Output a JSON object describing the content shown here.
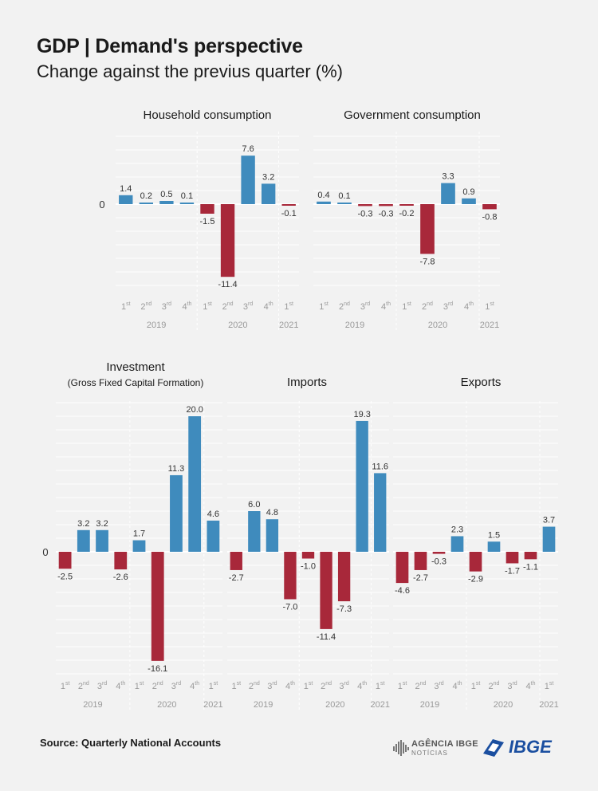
{
  "title": "GDP | Demand's perspective",
  "subtitle": "Change against the previus quarter (%)",
  "source": "Source: Quarterly National Accounts",
  "logos": {
    "agencia_line1": "AGÊNCIA IBGE",
    "agencia_line2": "NOTÍCIAS",
    "ibge": "IBGE"
  },
  "colors": {
    "positive": "#3f8bbd",
    "negative": "#a8283a",
    "background": "#f2f2f2",
    "grid": "#ffffff",
    "ibge_blue": "#1b4fa0"
  },
  "chart_data": [
    {
      "type": "bar",
      "title": "Household consumption",
      "subtitle": "",
      "categories": [
        "1st 2019",
        "2nd 2019",
        "3rd 2019",
        "4th 2019",
        "1st 2020",
        "2nd 2020",
        "3rd 2020",
        "4th 2020",
        "1st 2021"
      ],
      "values": [
        1.4,
        0.2,
        0.5,
        0.1,
        -1.5,
        -11.4,
        7.6,
        3.2,
        -0.1
      ],
      "value_labels": [
        "1.4",
        "0.2",
        "0.5",
        "0.1",
        "-1.5",
        "-11.4",
        "7.6",
        "3.2",
        "-0.1"
      ],
      "quarter_labels": [
        "1st",
        "2nd",
        "3rd",
        "4th",
        "1st",
        "2nd",
        "3rd",
        "4th",
        "1st"
      ],
      "year_labels": [
        "2019",
        "2020",
        "2021"
      ],
      "zero_label": "0",
      "ylim": [
        -12.5,
        10.5
      ],
      "grid": true
    },
    {
      "type": "bar",
      "title": "Government consumption",
      "subtitle": "",
      "categories": [
        "1st 2019",
        "2nd 2019",
        "3rd 2019",
        "4th 2019",
        "1st 2020",
        "2nd 2020",
        "3rd 2020",
        "4th 2020",
        "1st 2021"
      ],
      "values": [
        0.4,
        0.1,
        -0.3,
        -0.3,
        -0.2,
        -7.8,
        3.3,
        0.9,
        -0.8
      ],
      "value_labels": [
        "0.4",
        "0.1",
        "-0.3",
        "-0.3",
        "-0.2",
        "-7.8",
        "3.3",
        "0.9",
        "-0.8"
      ],
      "quarter_labels": [
        "1st",
        "2nd",
        "3rd",
        "4th",
        "1st",
        "2nd",
        "3rd",
        "4th",
        "1st"
      ],
      "year_labels": [
        "2019",
        "2020",
        "2021"
      ],
      "zero_label": "",
      "ylim": [
        -12.5,
        10.5
      ],
      "grid": true
    },
    {
      "type": "bar",
      "title": "Investment",
      "subtitle": "(Gross Fixed Capital Formation)",
      "categories": [
        "1st 2019",
        "2nd 2019",
        "3rd 2019",
        "4th 2019",
        "1st 2020",
        "2nd 2020",
        "3rd 2020",
        "4th 2020",
        "1st 2021"
      ],
      "values": [
        -2.5,
        3.2,
        3.2,
        -2.6,
        1.7,
        -16.1,
        11.3,
        20.0,
        4.6
      ],
      "value_labels": [
        "-2.5",
        "3.2",
        "3.2",
        "-2.6",
        "1.7",
        "-16.1",
        "11.3",
        "20.0",
        "4.6"
      ],
      "quarter_labels": [
        "1st",
        "2nd",
        "3rd",
        "4th",
        "1st",
        "2nd",
        "3rd",
        "4th",
        "1st"
      ],
      "year_labels": [
        "2019",
        "2020",
        "2021"
      ],
      "zero_label": "0",
      "ylim": [
        -18.5,
        22.5
      ],
      "grid": true
    },
    {
      "type": "bar",
      "title": "Imports",
      "subtitle": "",
      "categories": [
        "1st 2019",
        "2nd 2019",
        "3rd 2019",
        "4th 2019",
        "1st 2020",
        "2nd 2020",
        "3rd 2020",
        "4th 2020",
        "1st 2021"
      ],
      "values": [
        -2.7,
        6.0,
        4.8,
        -7.0,
        -1.0,
        -11.4,
        -7.3,
        19.3,
        11.6
      ],
      "value_labels": [
        "-2.7",
        "6.0",
        "4.8",
        "-7.0",
        "-1.0",
        "-11.4",
        "-7.3",
        "19.3",
        "11.6"
      ],
      "quarter_labels": [
        "1st",
        "2nd",
        "3rd",
        "4th",
        "1st",
        "2nd",
        "3rd",
        "4th",
        "1st"
      ],
      "year_labels": [
        "2019",
        "2020",
        "2021"
      ],
      "zero_label": "",
      "ylim": [
        -18.5,
        22.5
      ],
      "grid": true
    },
    {
      "type": "bar",
      "title": "Exports",
      "subtitle": "",
      "categories": [
        "1st 2019",
        "2nd 2019",
        "3rd 2019",
        "4th 2019",
        "1st 2020",
        "2nd 2020",
        "3rd 2020",
        "4th 2020",
        "1st 2021"
      ],
      "values": [
        -4.6,
        -2.7,
        -0.3,
        2.3,
        -2.9,
        1.5,
        -1.7,
        -1.1,
        3.7
      ],
      "value_labels": [
        "-4.6",
        "-2.7",
        "-0.3",
        "2.3",
        "-2.9",
        "1.5",
        "-1.7",
        "-1.1",
        "3.7"
      ],
      "quarter_labels": [
        "1st",
        "2nd",
        "3rd",
        "4th",
        "1st",
        "2nd",
        "3rd",
        "4th",
        "1st"
      ],
      "year_labels": [
        "2019",
        "2020",
        "2021"
      ],
      "zero_label": "",
      "ylim": [
        -18.5,
        22.5
      ],
      "grid": true
    }
  ]
}
